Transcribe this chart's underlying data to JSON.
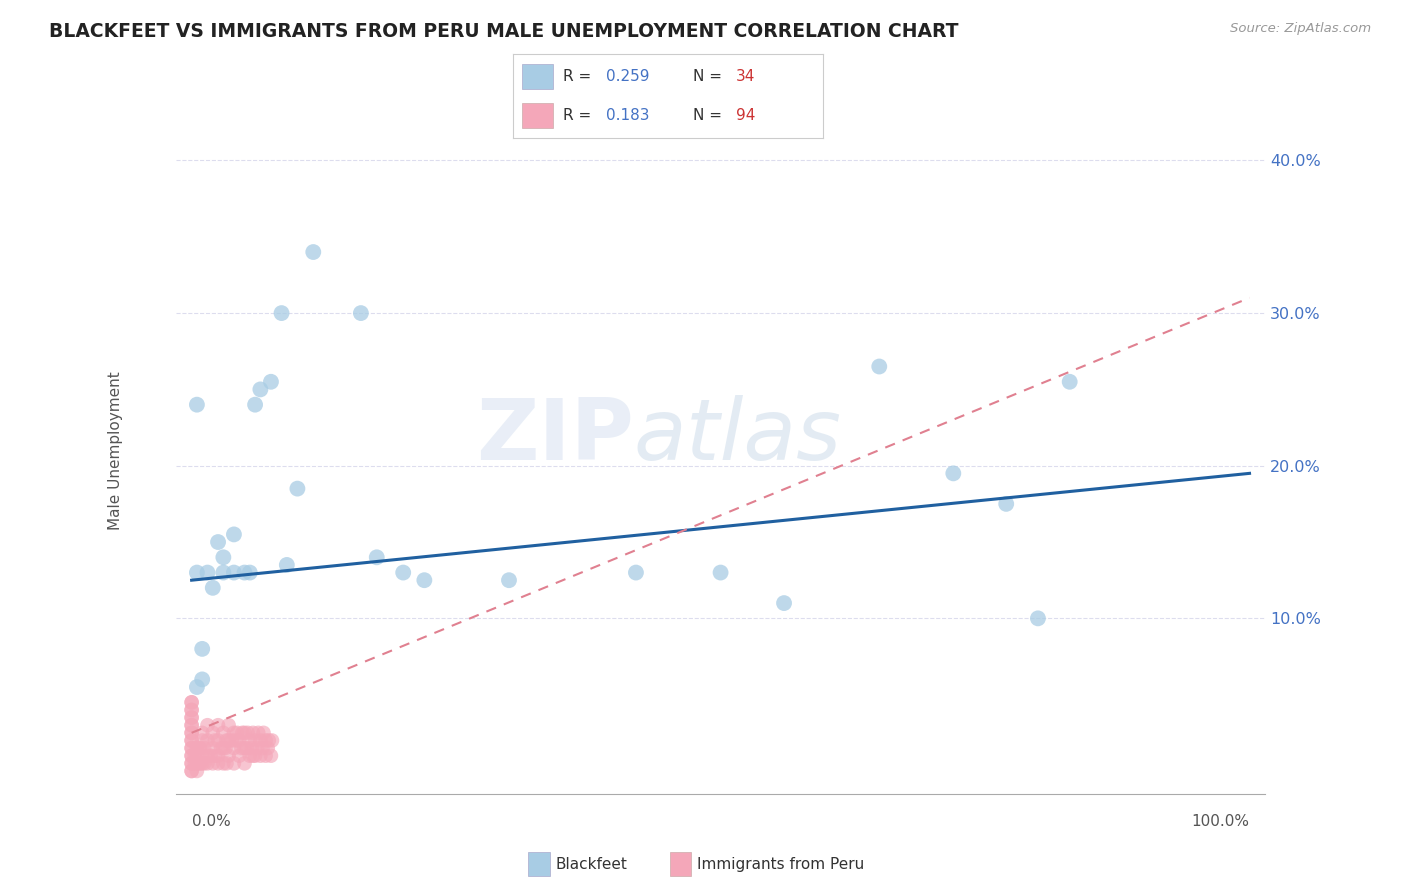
{
  "title": "BLACKFEET VS IMMIGRANTS FROM PERU MALE UNEMPLOYMENT CORRELATION CHART",
  "source": "Source: ZipAtlas.com",
  "ylabel": "Male Unemployment",
  "yticks": [
    0.0,
    0.1,
    0.2,
    0.3,
    0.4
  ],
  "ytick_labels": [
    "",
    "10.0%",
    "20.0%",
    "30.0%",
    "40.0%"
  ],
  "xlim": [
    -0.015,
    1.015
  ],
  "ylim": [
    -0.015,
    0.435
  ],
  "legend_r1_val": "0.259",
  "legend_n1_val": "34",
  "legend_r2_val": "0.183",
  "legend_n2_val": "94",
  "watermark": "ZIPatlas",
  "blue_color": "#a8cce4",
  "pink_color": "#f4a7b9",
  "blue_line_color": "#2060a0",
  "pink_line_color": "#e08090",
  "label_color": "#4472c4",
  "red_label_color": "#cc3333",
  "blue_x": [
    0.005,
    0.005,
    0.01,
    0.01,
    0.015,
    0.02,
    0.025,
    0.03,
    0.03,
    0.04,
    0.04,
    0.05,
    0.055,
    0.06,
    0.065,
    0.075,
    0.085,
    0.09,
    0.1,
    0.115,
    0.16,
    0.175,
    0.2,
    0.22,
    0.5,
    0.56,
    0.65,
    0.72,
    0.77,
    0.8,
    0.83,
    0.42,
    0.3,
    0.005
  ],
  "blue_y": [
    0.13,
    0.24,
    0.06,
    0.08,
    0.13,
    0.12,
    0.15,
    0.13,
    0.14,
    0.13,
    0.155,
    0.13,
    0.13,
    0.24,
    0.25,
    0.255,
    0.3,
    0.135,
    0.185,
    0.34,
    0.3,
    0.14,
    0.13,
    0.125,
    0.13,
    0.11,
    0.265,
    0.195,
    0.175,
    0.1,
    0.255,
    0.13,
    0.125,
    0.055
  ],
  "pink_x": [
    0.0,
    0.0,
    0.0,
    0.0,
    0.0,
    0.0,
    0.0,
    0.0,
    0.0,
    0.0,
    0.0,
    0.0,
    0.0,
    0.0,
    0.0,
    0.0,
    0.0,
    0.0,
    0.0,
    0.0,
    0.003,
    0.003,
    0.005,
    0.005,
    0.005,
    0.005,
    0.007,
    0.007,
    0.008,
    0.008,
    0.01,
    0.01,
    0.01,
    0.01,
    0.012,
    0.012,
    0.015,
    0.015,
    0.015,
    0.015,
    0.018,
    0.02,
    0.02,
    0.02,
    0.022,
    0.022,
    0.025,
    0.025,
    0.025,
    0.025,
    0.028,
    0.03,
    0.03,
    0.03,
    0.032,
    0.033,
    0.033,
    0.035,
    0.035,
    0.035,
    0.038,
    0.04,
    0.04,
    0.04,
    0.042,
    0.043,
    0.045,
    0.045,
    0.047,
    0.048,
    0.05,
    0.05,
    0.05,
    0.052,
    0.053,
    0.055,
    0.055,
    0.057,
    0.058,
    0.058,
    0.06,
    0.06,
    0.062,
    0.063,
    0.065,
    0.065,
    0.067,
    0.068,
    0.07,
    0.07,
    0.072,
    0.073,
    0.075,
    0.076
  ],
  "pink_y": [
    0.0,
    0.0,
    0.005,
    0.005,
    0.01,
    0.01,
    0.015,
    0.015,
    0.02,
    0.02,
    0.025,
    0.025,
    0.03,
    0.03,
    0.035,
    0.035,
    0.04,
    0.04,
    0.045,
    0.045,
    0.005,
    0.01,
    0.0,
    0.005,
    0.01,
    0.015,
    0.005,
    0.015,
    0.005,
    0.015,
    0.005,
    0.01,
    0.02,
    0.025,
    0.005,
    0.015,
    0.005,
    0.01,
    0.02,
    0.03,
    0.01,
    0.005,
    0.015,
    0.025,
    0.01,
    0.02,
    0.005,
    0.01,
    0.02,
    0.03,
    0.015,
    0.005,
    0.015,
    0.025,
    0.015,
    0.005,
    0.02,
    0.01,
    0.02,
    0.03,
    0.02,
    0.005,
    0.015,
    0.025,
    0.02,
    0.025,
    0.01,
    0.02,
    0.015,
    0.025,
    0.005,
    0.015,
    0.025,
    0.015,
    0.025,
    0.01,
    0.02,
    0.015,
    0.01,
    0.025,
    0.01,
    0.02,
    0.015,
    0.025,
    0.01,
    0.02,
    0.015,
    0.025,
    0.01,
    0.02,
    0.015,
    0.02,
    0.01,
    0.02
  ],
  "blue_trend_x": [
    0.0,
    1.0
  ],
  "blue_trend_y": [
    0.125,
    0.195
  ],
  "pink_trend_x": [
    0.0,
    1.0
  ],
  "pink_trend_y": [
    0.025,
    0.31
  ]
}
